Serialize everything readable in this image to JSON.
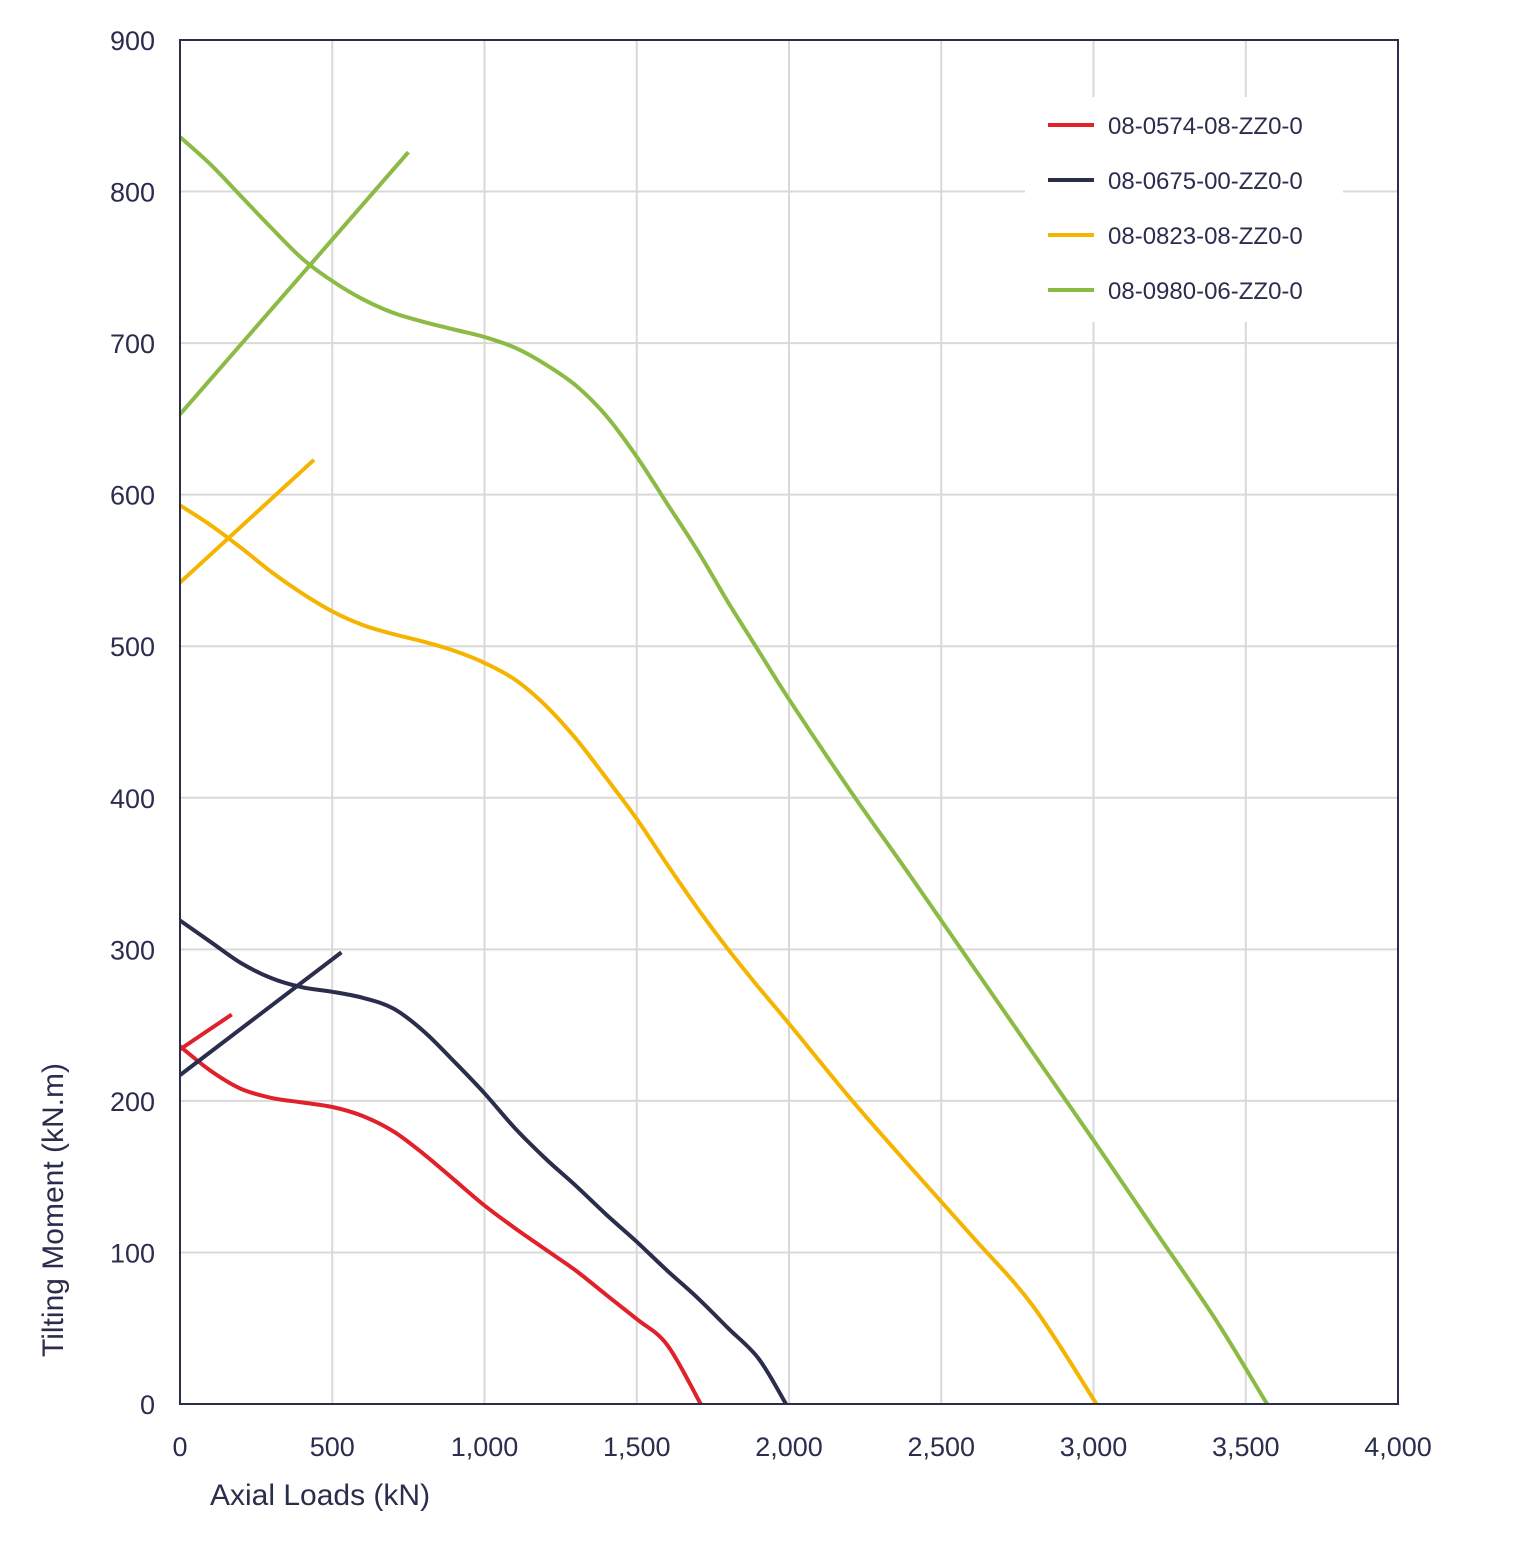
{
  "chart_data": {
    "type": "line",
    "xlabel": "Axial Loads (kN)",
    "ylabel": "Tilting Moment (kN.m)",
    "xlim": [
      0,
      4000
    ],
    "ylim": [
      0,
      900
    ],
    "x_ticks": [
      0,
      500,
      1000,
      1500,
      2000,
      2500,
      3000,
      3500,
      4000
    ],
    "x_tick_labels": [
      "0",
      "500",
      "1,000",
      "1,500",
      "2,000",
      "2,500",
      "3,000",
      "3,500",
      "4,000"
    ],
    "y_ticks": [
      0,
      100,
      200,
      300,
      400,
      500,
      600,
      700,
      800,
      900
    ],
    "y_tick_labels": [
      "0",
      "100",
      "200",
      "300",
      "400",
      "500",
      "600",
      "700",
      "800",
      "900"
    ],
    "grid": true,
    "legend_position": "top-right",
    "series": [
      {
        "name": "08-0574-08-ZZ0-0",
        "color": "#e0202a",
        "curve": [
          [
            0,
            236
          ],
          [
            100,
            220
          ],
          [
            200,
            208
          ],
          [
            300,
            202
          ],
          [
            400,
            199
          ],
          [
            500,
            196
          ],
          [
            600,
            190
          ],
          [
            700,
            180
          ],
          [
            800,
            165
          ],
          [
            900,
            148
          ],
          [
            1000,
            131
          ],
          [
            1100,
            116
          ],
          [
            1200,
            102
          ],
          [
            1300,
            88
          ],
          [
            1400,
            72
          ],
          [
            1500,
            56
          ],
          [
            1600,
            39
          ],
          [
            1710,
            0
          ]
        ],
        "line": [
          [
            0,
            234
          ],
          [
            170,
            257
          ]
        ]
      },
      {
        "name": "08-0675-00-ZZ0-0",
        "color": "#2b2d4d",
        "curve": [
          [
            0,
            319
          ],
          [
            100,
            305
          ],
          [
            200,
            291
          ],
          [
            300,
            281
          ],
          [
            400,
            275
          ],
          [
            500,
            272
          ],
          [
            600,
            268
          ],
          [
            700,
            261
          ],
          [
            800,
            246
          ],
          [
            900,
            226
          ],
          [
            1000,
            205
          ],
          [
            1100,
            182
          ],
          [
            1200,
            162
          ],
          [
            1300,
            144
          ],
          [
            1400,
            125
          ],
          [
            1500,
            107
          ],
          [
            1600,
            88
          ],
          [
            1700,
            70
          ],
          [
            1800,
            50
          ],
          [
            1900,
            30
          ],
          [
            1990,
            0
          ]
        ],
        "line": [
          [
            0,
            217
          ],
          [
            530,
            298
          ]
        ]
      },
      {
        "name": "08-0823-08-ZZ0-0",
        "color": "#f5b400",
        "curve": [
          [
            0,
            593
          ],
          [
            100,
            580
          ],
          [
            200,
            565
          ],
          [
            300,
            549
          ],
          [
            400,
            535
          ],
          [
            500,
            523
          ],
          [
            600,
            514
          ],
          [
            700,
            508
          ],
          [
            800,
            503
          ],
          [
            900,
            497
          ],
          [
            1000,
            489
          ],
          [
            1100,
            478
          ],
          [
            1200,
            461
          ],
          [
            1300,
            439
          ],
          [
            1400,
            413
          ],
          [
            1500,
            386
          ],
          [
            1600,
            356
          ],
          [
            1700,
            327
          ],
          [
            1800,
            300
          ],
          [
            1900,
            275
          ],
          [
            2000,
            251
          ],
          [
            2200,
            202
          ],
          [
            2400,
            156
          ],
          [
            2600,
            111
          ],
          [
            2800,
            65
          ],
          [
            3010,
            0
          ]
        ],
        "line": [
          [
            0,
            542
          ],
          [
            440,
            623
          ]
        ]
      },
      {
        "name": "08-0980-06-ZZ0-0",
        "color": "#8bba45",
        "curve": [
          [
            0,
            836
          ],
          [
            100,
            818
          ],
          [
            200,
            797
          ],
          [
            300,
            776
          ],
          [
            400,
            756
          ],
          [
            500,
            741
          ],
          [
            600,
            729
          ],
          [
            700,
            720
          ],
          [
            800,
            714
          ],
          [
            900,
            709
          ],
          [
            1000,
            704
          ],
          [
            1100,
            697
          ],
          [
            1200,
            686
          ],
          [
            1300,
            672
          ],
          [
            1400,
            652
          ],
          [
            1500,
            625
          ],
          [
            1600,
            594
          ],
          [
            1700,
            563
          ],
          [
            1800,
            529
          ],
          [
            1900,
            497
          ],
          [
            2000,
            465
          ],
          [
            2200,
            405
          ],
          [
            2400,
            348
          ],
          [
            2600,
            290
          ],
          [
            2800,
            232
          ],
          [
            3000,
            174
          ],
          [
            3200,
            115
          ],
          [
            3400,
            56
          ],
          [
            3570,
            0
          ]
        ],
        "line": [
          [
            0,
            653
          ],
          [
            750,
            826
          ]
        ]
      }
    ]
  }
}
